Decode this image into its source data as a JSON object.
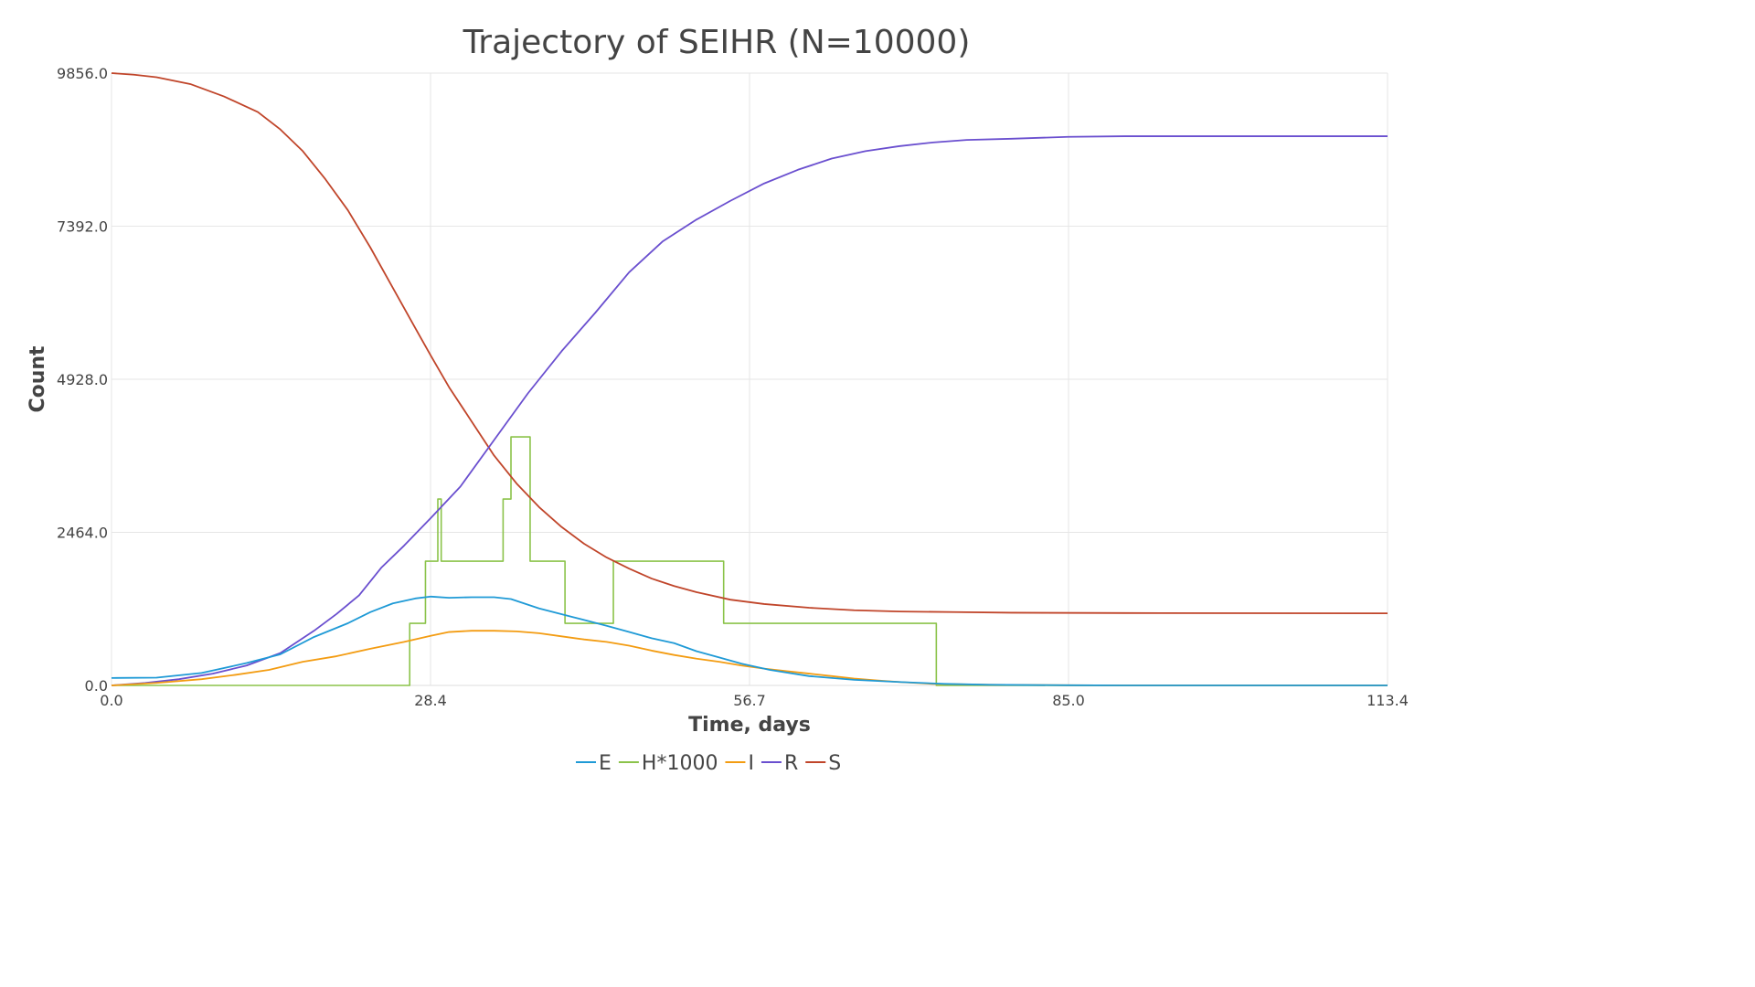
{
  "chart_data": {
    "type": "line",
    "title": "Trajectory of SEIHR (N=10000)",
    "xlabel": "Time, days",
    "ylabel": "Count",
    "xlim": [
      0,
      113.4
    ],
    "ylim": [
      0,
      9856
    ],
    "x_ticks": [
      "0.0",
      "28.4",
      "56.7",
      "85.0",
      "113.4"
    ],
    "y_ticks": [
      "0.0",
      "2464.0",
      "4928.0",
      "7392.0",
      "9856.0"
    ],
    "grid": true,
    "legend_position": "bottom-center",
    "series": [
      {
        "name": "E",
        "color": "#1f9ad6",
        "step": false,
        "points": [
          [
            0,
            120
          ],
          [
            4,
            125
          ],
          [
            8,
            200
          ],
          [
            12,
            360
          ],
          [
            15,
            500
          ],
          [
            18,
            780
          ],
          [
            21,
            1000
          ],
          [
            23,
            1180
          ],
          [
            25,
            1320
          ],
          [
            27,
            1400
          ],
          [
            28.4,
            1430
          ],
          [
            30,
            1410
          ],
          [
            32,
            1420
          ],
          [
            34,
            1420
          ],
          [
            35.5,
            1390
          ],
          [
            38,
            1240
          ],
          [
            41,
            1100
          ],
          [
            44,
            960
          ],
          [
            46,
            860
          ],
          [
            48,
            760
          ],
          [
            50,
            680
          ],
          [
            52,
            550
          ],
          [
            54,
            450
          ],
          [
            56,
            350
          ],
          [
            58.5,
            250
          ],
          [
            62,
            150
          ],
          [
            66,
            90
          ],
          [
            70,
            55
          ],
          [
            74,
            25
          ],
          [
            78,
            10
          ],
          [
            85,
            3
          ],
          [
            90,
            0
          ],
          [
            113.4,
            0
          ]
        ]
      },
      {
        "name": "H*1000",
        "color": "#8bc34a",
        "step": true,
        "points": [
          [
            0,
            0
          ],
          [
            26.5,
            0
          ],
          [
            26.5,
            1000
          ],
          [
            27.9,
            1000
          ],
          [
            27.9,
            2000
          ],
          [
            29,
            2000
          ],
          [
            29,
            3000
          ],
          [
            29.3,
            3000
          ],
          [
            29.3,
            2000
          ],
          [
            34.8,
            2000
          ],
          [
            34.8,
            3000
          ],
          [
            35.5,
            3000
          ],
          [
            35.5,
            4000
          ],
          [
            37.2,
            4000
          ],
          [
            37.2,
            2000
          ],
          [
            40.3,
            2000
          ],
          [
            40.3,
            1000
          ],
          [
            44.6,
            1000
          ],
          [
            44.6,
            2000
          ],
          [
            54.4,
            2000
          ],
          [
            54.4,
            1000
          ],
          [
            73.3,
            1000
          ],
          [
            73.3,
            0
          ],
          [
            113.4,
            0
          ]
        ]
      },
      {
        "name": "I",
        "color": "#f39c12",
        "step": false,
        "points": [
          [
            0,
            0
          ],
          [
            4,
            40
          ],
          [
            8,
            100
          ],
          [
            11,
            170
          ],
          [
            14,
            250
          ],
          [
            17,
            380
          ],
          [
            20,
            470
          ],
          [
            23,
            590
          ],
          [
            26,
            700
          ],
          [
            28.4,
            800
          ],
          [
            30,
            860
          ],
          [
            32,
            880
          ],
          [
            34,
            880
          ],
          [
            36,
            870
          ],
          [
            38,
            840
          ],
          [
            40,
            790
          ],
          [
            42,
            740
          ],
          [
            44,
            700
          ],
          [
            46,
            640
          ],
          [
            48,
            560
          ],
          [
            50,
            490
          ],
          [
            52,
            430
          ],
          [
            54,
            380
          ],
          [
            56,
            320
          ],
          [
            58,
            270
          ],
          [
            60,
            230
          ],
          [
            62,
            190
          ],
          [
            64,
            150
          ],
          [
            66,
            110
          ],
          [
            68,
            80
          ],
          [
            70,
            55
          ],
          [
            73,
            25
          ],
          [
            78,
            10
          ],
          [
            85,
            3
          ],
          [
            90,
            0
          ],
          [
            113.4,
            0
          ]
        ]
      },
      {
        "name": "R",
        "color": "#6a4fcf",
        "step": false,
        "points": [
          [
            0,
            0
          ],
          [
            3,
            40
          ],
          [
            6,
            100
          ],
          [
            9,
            190
          ],
          [
            12,
            320
          ],
          [
            15,
            520
          ],
          [
            18,
            880
          ],
          [
            20,
            1150
          ],
          [
            22,
            1450
          ],
          [
            24,
            1900
          ],
          [
            26,
            2250
          ],
          [
            28.4,
            2700
          ],
          [
            31,
            3200
          ],
          [
            34,
            3950
          ],
          [
            37,
            4700
          ],
          [
            40,
            5380
          ],
          [
            43,
            6000
          ],
          [
            46,
            6650
          ],
          [
            49,
            7150
          ],
          [
            52,
            7500
          ],
          [
            55,
            7800
          ],
          [
            58,
            8080
          ],
          [
            61,
            8300
          ],
          [
            64,
            8480
          ],
          [
            67,
            8600
          ],
          [
            70,
            8680
          ],
          [
            73,
            8740
          ],
          [
            76,
            8780
          ],
          [
            80,
            8800
          ],
          [
            85,
            8830
          ],
          [
            90,
            8840
          ],
          [
            100,
            8840
          ],
          [
            113.4,
            8840
          ]
        ]
      },
      {
        "name": "S",
        "color": "#c0452a",
        "step": false,
        "points": [
          [
            0,
            9856
          ],
          [
            2,
            9830
          ],
          [
            4,
            9790
          ],
          [
            7,
            9680
          ],
          [
            10,
            9480
          ],
          [
            13,
            9230
          ],
          [
            15,
            8950
          ],
          [
            17,
            8600
          ],
          [
            19,
            8150
          ],
          [
            21,
            7650
          ],
          [
            23,
            7050
          ],
          [
            25,
            6400
          ],
          [
            27,
            5750
          ],
          [
            28.4,
            5300
          ],
          [
            30,
            4800
          ],
          [
            32,
            4250
          ],
          [
            34,
            3700
          ],
          [
            36,
            3250
          ],
          [
            38,
            2870
          ],
          [
            40,
            2550
          ],
          [
            42,
            2280
          ],
          [
            44,
            2060
          ],
          [
            46,
            1880
          ],
          [
            48,
            1720
          ],
          [
            50,
            1600
          ],
          [
            52,
            1500
          ],
          [
            55,
            1380
          ],
          [
            58,
            1310
          ],
          [
            62,
            1250
          ],
          [
            66,
            1210
          ],
          [
            70,
            1190
          ],
          [
            75,
            1180
          ],
          [
            80,
            1170
          ],
          [
            90,
            1165
          ],
          [
            113.4,
            1160
          ]
        ]
      }
    ]
  }
}
